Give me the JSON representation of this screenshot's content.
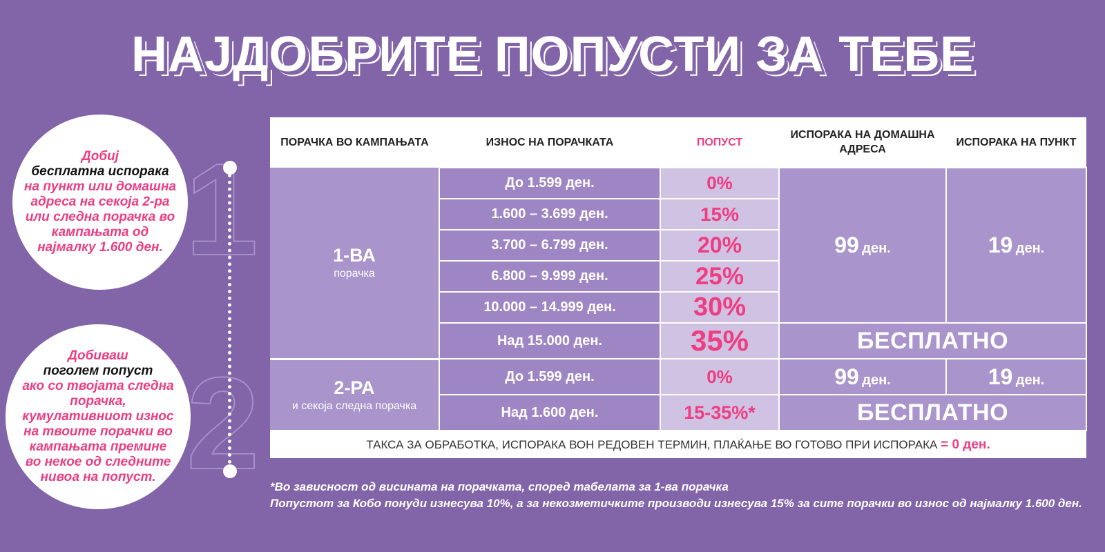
{
  "title": "НАЈДОБРИТЕ  ПОПУСТИ ЗА ТЕБЕ",
  "bubble1": {
    "part1": "Добиј",
    "part2": "бесплатна испорака",
    "part3": "на пункт или домашна адреса на секоја 2-ра или следна порачка во кампањата од најмалку 1.600 ден."
  },
  "bubble2": {
    "part1": "Добиваш",
    "part2": "поголем попуст",
    "part3": "ако со твојата следна порачка, кумулативниот износ на твоите порачки во кампањата премине во некое од следните нивоа на попуст."
  },
  "steps": [
    "1",
    "2"
  ],
  "table": {
    "headers": [
      "ПОРАЧКА ВО КАМПАЊАТА",
      "ИЗНОС НА ПОРАЧКАТА",
      "ПОПУСТ",
      "ИСПОРАКА НА ДОМАШНА АДРЕСА",
      "ИСПОРАКА НА ПУНКТ"
    ],
    "first": {
      "label": "1-ВА",
      "sub": "порачка",
      "rows": [
        {
          "amount": "До 1.599 ден.",
          "discount": "0%"
        },
        {
          "amount": "1.600 – 3.699 ден.",
          "discount": "15%"
        },
        {
          "amount": "3.700 – 6.799 ден.",
          "discount": "20%"
        },
        {
          "amount": "6.800 – 9.999 ден.",
          "discount": "25%"
        },
        {
          "amount": "10.000 – 14.999 ден.",
          "discount": "30%"
        },
        {
          "amount": "Над 15.000 ден.",
          "discount": "35%"
        }
      ],
      "home_value": "99",
      "point_value": "19",
      "free": "БЕСПЛАТНО"
    },
    "second": {
      "label": "2-РА",
      "sub": "и секоја следна порачка",
      "rows": [
        {
          "amount": "До 1.599 ден.",
          "discount": "0%"
        },
        {
          "amount": "Над 1.600 ден.",
          "discount": "15-35%*"
        }
      ],
      "home_value": "99",
      "point_value": "19",
      "free": "БЕСПЛАТНО"
    },
    "currency": "ден.",
    "footer_text": "ТАКСА ЗА ОБРАБОТКА, ИСПОРАКА ВОН РЕДОВЕН ТЕРМИН, ПЛАЌАЊЕ ВО ГОТОВО ПРИ ИСПОРАКА",
    "footer_value": "= 0 ден."
  },
  "notes": [
    "*Во зависност од висината на порачката, според табелата за 1-ва порачка",
    "Попустот за Кобо понуди изнесува 10%, а за некозметичките производи изнесува 15% за сите порачки во износ од најмалку 1.600 ден."
  ],
  "colors": {
    "background": "#8264a8",
    "accent": "#ef3d82",
    "cell": "#a994cb",
    "cell_light": "#cfc2e3"
  }
}
